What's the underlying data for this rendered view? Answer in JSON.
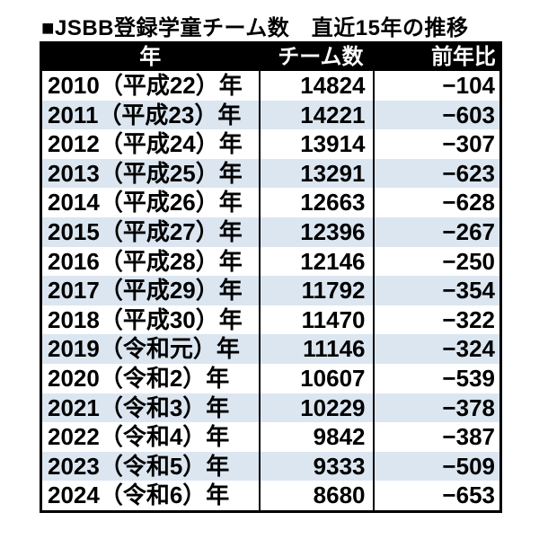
{
  "title": "■JSBB登録学童チーム数　直近15年の推移",
  "colors": {
    "header_bg": "#000000",
    "header_fg": "#ffffff",
    "alt_row_bg": "#dce6f1",
    "row_bg": "#ffffff",
    "border": "#000000",
    "text": "#000000"
  },
  "chart_data": {
    "type": "table",
    "title": "■JSBB登録学童チーム数　直近15年の推移",
    "columns": [
      "年",
      "チーム数",
      "前年比"
    ],
    "rows": [
      {
        "year": "2010（平成22）年",
        "teams": 14824,
        "yoy": -104
      },
      {
        "year": "2011（平成23）年",
        "teams": 14221,
        "yoy": -603
      },
      {
        "year": "2012（平成24）年",
        "teams": 13914,
        "yoy": -307
      },
      {
        "year": "2013（平成25）年",
        "teams": 13291,
        "yoy": -623
      },
      {
        "year": "2014（平成26）年",
        "teams": 12663,
        "yoy": -628
      },
      {
        "year": "2015（平成27）年",
        "teams": 12396,
        "yoy": -267
      },
      {
        "year": "2016（平成28）年",
        "teams": 12146,
        "yoy": -250
      },
      {
        "year": "2017（平成29）年",
        "teams": 11792,
        "yoy": -354
      },
      {
        "year": "2018（平成30）年",
        "teams": 11470,
        "yoy": -322
      },
      {
        "year": "2019（令和元）年",
        "teams": 11146,
        "yoy": -324
      },
      {
        "year": "2020（令和2）年",
        "teams": 10607,
        "yoy": -539
      },
      {
        "year": "2021（令和3）年",
        "teams": 10229,
        "yoy": -378
      },
      {
        "year": "2022（令和4）年",
        "teams": 9842,
        "yoy": -387
      },
      {
        "year": "2023（令和5）年",
        "teams": 9333,
        "yoy": -509
      },
      {
        "year": "2024（令和6）年",
        "teams": 8680,
        "yoy": -653
      }
    ]
  }
}
